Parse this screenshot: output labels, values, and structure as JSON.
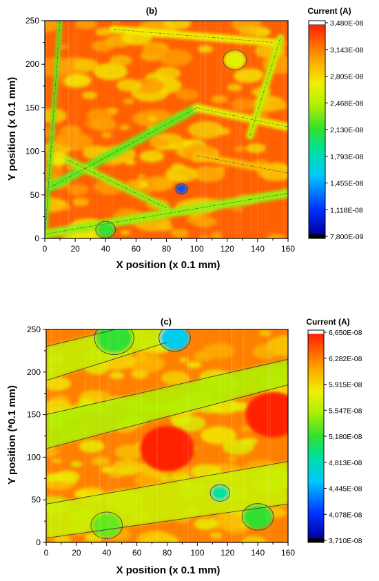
{
  "chart_data": [
    {
      "type": "heatmap",
      "panel_label": "(b)",
      "xlabel": "X position (x 0.1 mm)",
      "ylabel": "Y position (x 0.1 mm)",
      "xlim": [
        0,
        160
      ],
      "ylim": [
        0,
        250
      ],
      "x_ticks": [
        0,
        20,
        40,
        60,
        80,
        100,
        120,
        140,
        160
      ],
      "y_ticks": [
        0,
        50,
        100,
        150,
        200,
        250
      ],
      "colorbar": {
        "title": "Current (A)",
        "min": 7.8e-09,
        "max": 3.48e-08,
        "tick_labels": [
          "3,480E-08",
          "3,143E-08",
          "2,805E-08",
          "2,468E-08",
          "2,130E-08",
          "1,793E-08",
          "1,455E-08",
          "1,118E-08",
          "7,800E-09"
        ]
      },
      "base_level": 0.92,
      "features": [
        {
          "shape": "line",
          "x1": 0,
          "y1": 0,
          "x2": 10,
          "y2": 250,
          "level": 0.55,
          "width": 3,
          "desc": "left edge"
        },
        {
          "shape": "line",
          "x1": 5,
          "y1": 60,
          "x2": 100,
          "y2": 150,
          "level": 0.55,
          "width": 6
        },
        {
          "shape": "line",
          "x1": 100,
          "y1": 150,
          "x2": 160,
          "y2": 128,
          "level": 0.7,
          "width": 5
        },
        {
          "shape": "line",
          "x1": 15,
          "y1": 90,
          "x2": 80,
          "y2": 35,
          "level": 0.6,
          "width": 5
        },
        {
          "shape": "line",
          "x1": 0,
          "y1": 5,
          "x2": 160,
          "y2": 52,
          "level": 0.6,
          "width": 6
        },
        {
          "shape": "line",
          "x1": 45,
          "y1": 240,
          "x2": 150,
          "y2": 225,
          "level": 0.72,
          "width": 5
        },
        {
          "shape": "line",
          "x1": 155,
          "y1": 230,
          "x2": 135,
          "y2": 118,
          "level": 0.65,
          "width": 5
        },
        {
          "shape": "line",
          "x1": 100,
          "y1": 95,
          "x2": 160,
          "y2": 75,
          "level": 0.8,
          "width": 5
        },
        {
          "shape": "blob",
          "x": 90,
          "y": 57,
          "r": 3,
          "level": 0.15
        },
        {
          "shape": "blob",
          "x": 40,
          "y": 10,
          "r": 5,
          "level": 0.5
        },
        {
          "shape": "blob",
          "x": 125,
          "y": 205,
          "r": 6,
          "level": 0.7
        }
      ]
    },
    {
      "type": "heatmap",
      "panel_label": "(c)",
      "xlabel": "X position (x 0.1 mm)",
      "ylabel": "Y position (*0.1 mm)",
      "xlim": [
        0,
        160
      ],
      "ylim": [
        0,
        250
      ],
      "x_ticks": [
        0,
        20,
        40,
        60,
        80,
        100,
        120,
        140,
        160
      ],
      "y_ticks": [
        0,
        50,
        100,
        150,
        200,
        250
      ],
      "colorbar": {
        "title": "Current (A)",
        "min": 3.71e-08,
        "max": 6.65e-08,
        "tick_labels": [
          "6,650E-08",
          "6,282E-08",
          "5,915E-08",
          "5,547E-08",
          "5,180E-08",
          "4,813E-08",
          "4,445E-08",
          "4,078E-08",
          "3,710E-08"
        ]
      },
      "base_level": 0.88,
      "features": [
        {
          "shape": "band",
          "x1": 0,
          "y1": 130,
          "x2": 160,
          "y2": 200,
          "w1": 40,
          "w2": 30,
          "level": 0.62
        },
        {
          "shape": "band",
          "x1": 0,
          "y1": 210,
          "x2": 80,
          "y2": 250,
          "w1": 40,
          "w2": 30,
          "level": 0.65
        },
        {
          "shape": "band",
          "x1": 0,
          "y1": 25,
          "x2": 160,
          "y2": 70,
          "w1": 40,
          "w2": 50,
          "level": 0.66
        },
        {
          "shape": "blob",
          "x": 85,
          "y": 240,
          "r": 8,
          "level": 0.3
        },
        {
          "shape": "blob",
          "x": 45,
          "y": 240,
          "r": 10,
          "level": 0.5
        },
        {
          "shape": "blob",
          "x": 115,
          "y": 58,
          "r": 5,
          "level": 0.4
        },
        {
          "shape": "blob",
          "x": 140,
          "y": 30,
          "r": 8,
          "level": 0.5
        },
        {
          "shape": "blob",
          "x": 40,
          "y": 20,
          "r": 8,
          "level": 0.55
        },
        {
          "shape": "blob",
          "x": 80,
          "y": 110,
          "r": 15,
          "level": 1.0
        },
        {
          "shape": "blob",
          "x": 150,
          "y": 150,
          "r": 15,
          "level": 1.0
        }
      ]
    }
  ]
}
